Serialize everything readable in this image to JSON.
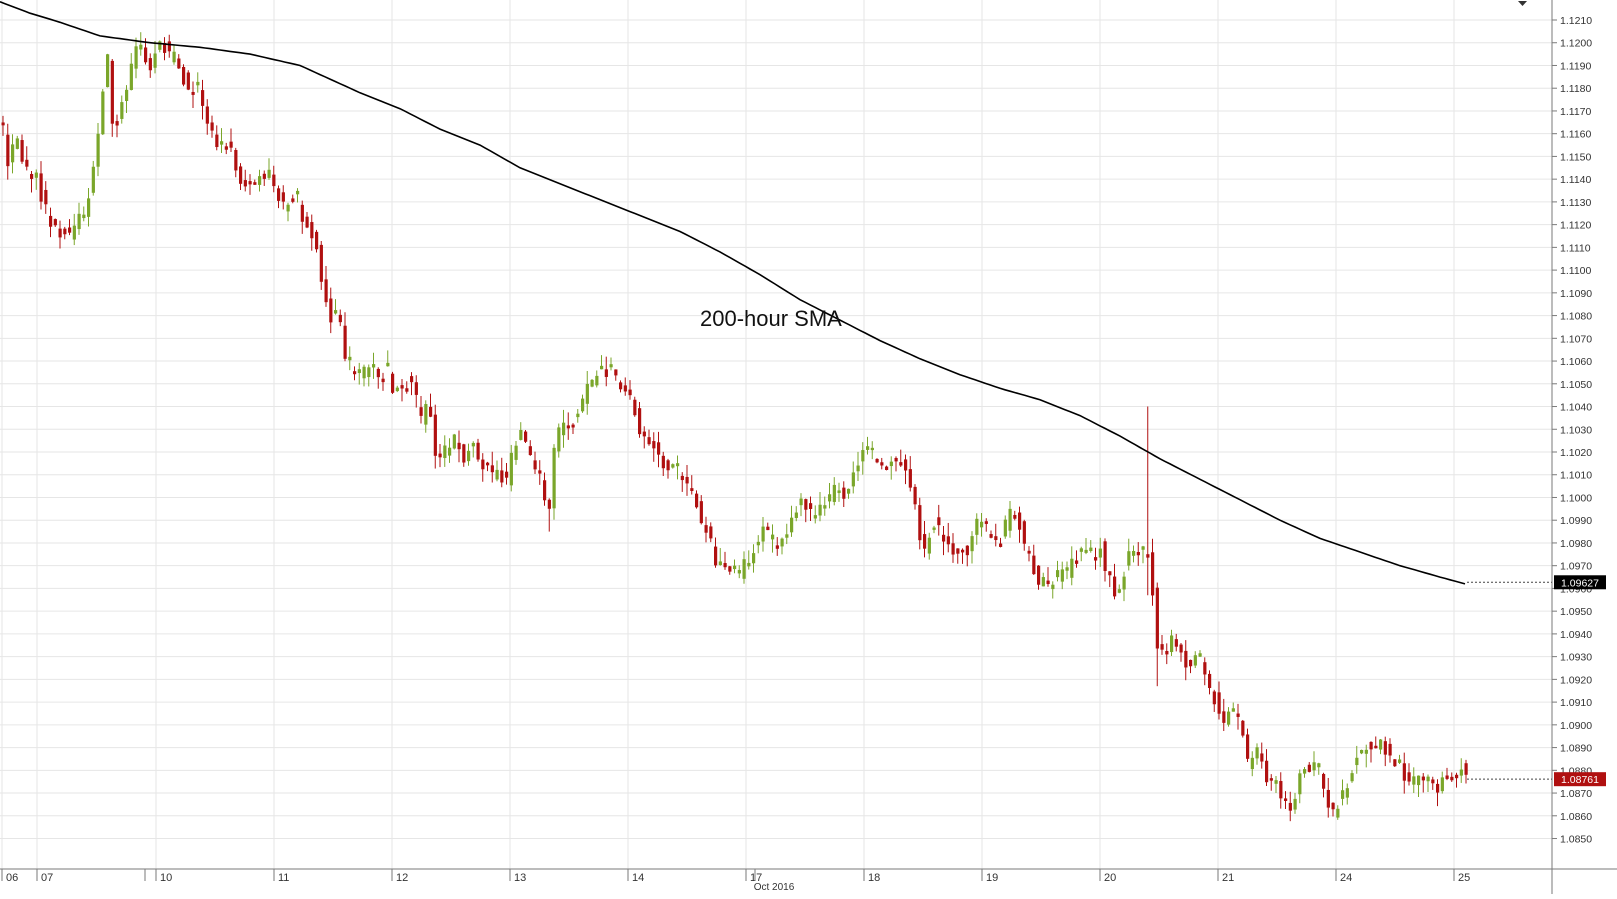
{
  "chart_data": {
    "type": "candlestick",
    "title": "",
    "annotation": "200-hour SMA",
    "period": "Oct 2016",
    "ylim": [
      1.0853,
      1.1218
    ],
    "y_ticks": [
      "1.1210",
      "1.1200",
      "1.1190",
      "1.1180",
      "1.1170",
      "1.1160",
      "1.1150",
      "1.1140",
      "1.1130",
      "1.1120",
      "1.1110",
      "1.1100",
      "1.1090",
      "1.1080",
      "1.1070",
      "1.1060",
      "1.1050",
      "1.1040",
      "1.1030",
      "1.1020",
      "1.1010",
      "1.1000",
      "1.0990",
      "1.0980",
      "1.0970",
      "1.0960",
      "1.0950",
      "1.0940",
      "1.0930",
      "1.0920",
      "1.0910",
      "1.0900",
      "1.0890",
      "1.0880",
      "1.0870",
      "1.0860",
      "1.0850"
    ],
    "x_ticks": [
      "06",
      "07",
      "10",
      "11",
      "12",
      "13",
      "14",
      "17",
      "18",
      "19",
      "20",
      "21",
      "24",
      "25"
    ],
    "price_anchors": [
      [
        0,
        1.1165
      ],
      [
        7,
        1.1145
      ],
      [
        14,
        1.1158
      ],
      [
        21,
        1.1148
      ],
      [
        28,
        1.1142
      ],
      [
        35,
        1.114
      ],
      [
        42,
        1.1128
      ],
      [
        49,
        1.1122
      ],
      [
        56,
        1.1115
      ],
      [
        63,
        1.1117
      ],
      [
        70,
        1.1115
      ],
      [
        77,
        1.1125
      ],
      [
        84,
        1.1125
      ],
      [
        91,
        1.1142
      ],
      [
        98,
        1.1165
      ],
      [
        105,
        1.12
      ],
      [
        112,
        1.1158
      ],
      [
        119,
        1.1175
      ],
      [
        126,
        1.118
      ],
      [
        133,
        1.1195
      ],
      [
        140,
        1.12
      ],
      [
        147,
        1.1188
      ],
      [
        154,
        1.1197
      ],
      [
        161,
        1.12
      ],
      [
        168,
        1.1193
      ],
      [
        175,
        1.1194
      ],
      [
        182,
        1.1184
      ],
      [
        189,
        1.1178
      ],
      [
        196,
        1.118
      ],
      [
        203,
        1.117
      ],
      [
        210,
        1.1162
      ],
      [
        217,
        1.1153
      ],
      [
        224,
        1.1158
      ],
      [
        231,
        1.1152
      ],
      [
        238,
        1.1138
      ],
      [
        245,
        1.1136
      ],
      [
        252,
        1.114
      ],
      [
        259,
        1.114
      ],
      [
        266,
        1.1142
      ],
      [
        273,
        1.1138
      ],
      [
        280,
        1.1128
      ],
      [
        287,
        1.1131
      ],
      [
        294,
        1.1134
      ],
      [
        301,
        1.1122
      ],
      [
        308,
        1.1118
      ],
      [
        315,
        1.111
      ],
      [
        322,
        1.1092
      ],
      [
        329,
        1.1078
      ],
      [
        336,
        1.1085
      ],
      [
        343,
        1.106
      ],
      [
        350,
        1.1058
      ],
      [
        357,
        1.1055
      ],
      [
        364,
        1.1056
      ],
      [
        371,
        1.1058
      ],
      [
        378,
        1.1052
      ],
      [
        385,
        1.1058
      ],
      [
        392,
        1.1045
      ],
      [
        399,
        1.105
      ],
      [
        406,
        1.1051
      ],
      [
        413,
        1.1046
      ],
      [
        420,
        1.1032
      ],
      [
        427,
        1.1045
      ],
      [
        434,
        1.1018
      ],
      [
        441,
        1.102
      ],
      [
        448,
        1.1022
      ],
      [
        455,
        1.1028
      ],
      [
        462,
        1.1015
      ],
      [
        469,
        1.1025
      ],
      [
        476,
        1.1018
      ],
      [
        483,
        1.1012
      ],
      [
        490,
        1.101
      ],
      [
        497,
        1.1012
      ],
      [
        504,
        1.1005
      ],
      [
        511,
        1.102
      ],
      [
        518,
        1.103
      ],
      [
        525,
        1.1022
      ],
      [
        532,
        1.1015
      ],
      [
        539,
        1.101
      ],
      [
        546,
        1.099
      ],
      [
        553,
        1.1022
      ],
      [
        560,
        1.1035
      ],
      [
        567,
        1.103
      ],
      [
        574,
        1.1035
      ],
      [
        581,
        1.1042
      ],
      [
        588,
        1.105
      ],
      [
        595,
        1.1055
      ],
      [
        602,
        1.1055
      ],
      [
        609,
        1.1056
      ],
      [
        616,
        1.1052
      ],
      [
        623,
        1.1048
      ],
      [
        630,
        1.1045
      ],
      [
        637,
        1.103
      ],
      [
        644,
        1.1025
      ],
      [
        651,
        1.1022
      ],
      [
        658,
        1.1018
      ],
      [
        665,
        1.1013
      ],
      [
        672,
        1.1015
      ],
      [
        679,
        1.101
      ],
      [
        686,
        1.1005
      ],
      [
        693,
        1.1
      ],
      [
        700,
        1.099
      ],
      [
        707,
        1.0984
      ],
      [
        714,
        1.0972
      ],
      [
        721,
        1.0968
      ],
      [
        728,
        1.0968
      ],
      [
        735,
        1.0965
      ],
      [
        742,
        1.097
      ],
      [
        749,
        1.0974
      ],
      [
        756,
        1.0982
      ],
      [
        763,
        1.0986
      ],
      [
        770,
        1.0982
      ],
      [
        777,
        1.0978
      ],
      [
        784,
        1.0984
      ],
      [
        791,
        1.0993
      ],
      [
        798,
        1.0998
      ],
      [
        805,
        1.0995
      ],
      [
        812,
        1.099
      ],
      [
        819,
        1.0995
      ],
      [
        826,
        1.1
      ],
      [
        833,
        1.1003
      ],
      [
        840,
        1.1001
      ],
      [
        847,
        1.1002
      ],
      [
        854,
        1.1012
      ],
      [
        861,
        1.102
      ],
      [
        868,
        1.1022
      ],
      [
        875,
        1.1016
      ],
      [
        882,
        1.1013
      ],
      [
        889,
        1.1015
      ],
      [
        896,
        1.1018
      ],
      [
        903,
        1.1012
      ],
      [
        910,
        1.1005
      ],
      [
        917,
        1.0985
      ],
      [
        924,
        1.0976
      ],
      [
        931,
        1.099
      ],
      [
        938,
        1.0985
      ],
      [
        945,
        1.0978
      ],
      [
        952,
        1.0976
      ],
      [
        959,
        1.0977
      ],
      [
        966,
        1.0975
      ],
      [
        973,
        1.099
      ],
      [
        980,
        1.0988
      ],
      [
        987,
        1.0985
      ],
      [
        994,
        1.098
      ],
      [
        1001,
        1.0984
      ],
      [
        1008,
        1.0995
      ],
      [
        1015,
        1.0993
      ],
      [
        1022,
        1.098
      ],
      [
        1029,
        1.0972
      ],
      [
        1036,
        1.0963
      ],
      [
        1043,
        1.0963
      ],
      [
        1050,
        1.0962
      ],
      [
        1057,
        1.0966
      ],
      [
        1064,
        1.0966
      ],
      [
        1071,
        1.0971
      ],
      [
        1078,
        1.0978
      ],
      [
        1085,
        1.0976
      ],
      [
        1092,
        1.0972
      ],
      [
        1099,
        1.0978
      ],
      [
        1106,
        1.0966
      ],
      [
        1113,
        1.0958
      ],
      [
        1120,
        1.0964
      ],
      [
        1127,
        1.0975
      ],
      [
        1134,
        1.0978
      ],
      [
        1141,
        1.0975
      ],
      [
        1148,
        1.0978
      ],
      [
        1152,
        1.0951
      ],
      [
        1155,
        1.0935
      ],
      [
        1162,
        1.093
      ],
      [
        1169,
        1.094
      ],
      [
        1176,
        1.0932
      ],
      [
        1183,
        1.0928
      ],
      [
        1190,
        1.0928
      ],
      [
        1197,
        1.093
      ],
      [
        1204,
        1.0922
      ],
      [
        1211,
        1.0914
      ],
      [
        1218,
        1.0904
      ],
      [
        1225,
        1.0902
      ],
      [
        1232,
        1.0907
      ],
      [
        1239,
        1.0903
      ],
      [
        1246,
        1.0883
      ],
      [
        1253,
        1.089
      ],
      [
        1260,
        1.0882
      ],
      [
        1267,
        1.0872
      ],
      [
        1274,
        1.0874
      ],
      [
        1281,
        1.0868
      ],
      [
        1288,
        1.0864
      ],
      [
        1295,
        1.0872
      ],
      [
        1302,
        1.0882
      ],
      [
        1309,
        1.088
      ],
      [
        1316,
        1.0882
      ],
      [
        1323,
        1.0872
      ],
      [
        1330,
        1.086
      ],
      [
        1337,
        1.0866
      ],
      [
        1344,
        1.0872
      ],
      [
        1351,
        1.0882
      ],
      [
        1358,
        1.0888
      ],
      [
        1365,
        1.0892
      ],
      [
        1372,
        1.089
      ],
      [
        1379,
        1.0893
      ],
      [
        1386,
        1.0888
      ],
      [
        1393,
        1.0882
      ],
      [
        1400,
        1.088
      ],
      [
        1407,
        1.0873
      ],
      [
        1414,
        1.0876
      ],
      [
        1421,
        1.0878
      ],
      [
        1428,
        1.0875
      ],
      [
        1435,
        1.0872
      ],
      [
        1442,
        1.0876
      ],
      [
        1449,
        1.0878
      ],
      [
        1456,
        1.088
      ],
      [
        1463,
        1.0882
      ],
      [
        1466,
        1.0876
      ]
    ],
    "spikes": [
      {
        "x": 546,
        "low": 1.0985
      },
      {
        "x": 1148,
        "high": 1.104
      },
      {
        "x": 1148,
        "low": 1.0957
      },
      {
        "x": 1155,
        "low": 1.0917
      }
    ],
    "sma_anchors": [
      [
        0,
        1.1218
      ],
      [
        30,
        1.1213
      ],
      [
        60,
        1.1209
      ],
      [
        100,
        1.1203
      ],
      [
        150,
        1.12
      ],
      [
        200,
        1.1198
      ],
      [
        250,
        1.1195
      ],
      [
        300,
        1.119
      ],
      [
        330,
        1.1184
      ],
      [
        360,
        1.1178
      ],
      [
        400,
        1.1171
      ],
      [
        440,
        1.1162
      ],
      [
        480,
        1.1155
      ],
      [
        520,
        1.1145
      ],
      [
        560,
        1.1138
      ],
      [
        600,
        1.1131
      ],
      [
        640,
        1.1124
      ],
      [
        680,
        1.1117
      ],
      [
        720,
        1.1108
      ],
      [
        760,
        1.1098
      ],
      [
        800,
        1.1087
      ],
      [
        840,
        1.1078
      ],
      [
        880,
        1.1069
      ],
      [
        920,
        1.1061
      ],
      [
        960,
        1.1054
      ],
      [
        1000,
        1.1048
      ],
      [
        1040,
        1.1043
      ],
      [
        1080,
        1.1036
      ],
      [
        1120,
        1.1027
      ],
      [
        1160,
        1.1017
      ],
      [
        1200,
        1.1008
      ],
      [
        1240,
        1.0999
      ],
      [
        1280,
        1.099
      ],
      [
        1320,
        1.0982
      ],
      [
        1360,
        1.0976
      ],
      [
        1400,
        1.097
      ],
      [
        1440,
        1.0965
      ],
      [
        1465,
        1.0962
      ]
    ],
    "series": [
      {
        "name": "200-hour SMA",
        "last_value": "1.09627"
      }
    ],
    "last_price": "1.08761",
    "colors": {
      "up": "#7aa62a",
      "down": "#b01010",
      "sma": "#000000",
      "last_price_bg": "#b01010",
      "sma_label_bg": "#000000",
      "grid": "#e6e6e6",
      "axis": "#555555"
    },
    "grid": true
  }
}
